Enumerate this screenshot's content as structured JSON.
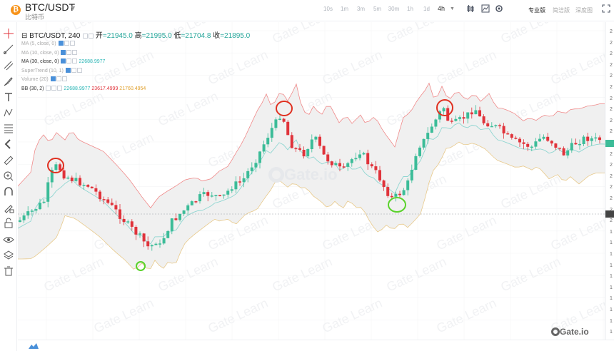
{
  "header": {
    "coin_icon": "bitcoin-icon",
    "pair": "BTC/USDT",
    "pair_sub": "比特币",
    "intervals": [
      "10s",
      "1m",
      "3m",
      "5m",
      "30m",
      "1h",
      "1d"
    ],
    "active_interval": "4h",
    "icons": [
      "candle-type-icon",
      "indicator-icon",
      "settings-icon"
    ],
    "views": [
      "专业版",
      "简洁版",
      "深度图"
    ],
    "fullscreen_icon": "fullscreen-icon"
  },
  "legend": {
    "symbol": "BTC/USDT, 240",
    "open_label": "开",
    "open": "=21945.0",
    "high_label": "高",
    "high": "=21995.0",
    "low_label": "低",
    "low": "=21704.8",
    "close_label": "收",
    "close": "=21895.0",
    "indicators": [
      {
        "name": "MA (5, close, 0)",
        "values": []
      },
      {
        "name": "MA (10, close, 0)",
        "values": []
      },
      {
        "name": "MA (30, close, 0)",
        "values": [
          "22688.9977"
        ]
      },
      {
        "name": "SuperTrend (10, 1)",
        "values": []
      },
      {
        "name": "Volume (20)",
        "values": []
      },
      {
        "name": "BB (30, 2)",
        "values": [
          "22688.9977",
          "23617.4999",
          "21760.4954"
        ]
      }
    ]
  },
  "toolbar": [
    "crosshair-icon",
    "trend-line-icon",
    "multi-line-icon",
    "brush-icon",
    "text-icon",
    "pattern-icon",
    "fib-icon",
    "back-arrow-icon",
    "ruler-icon",
    "zoom-in-icon",
    "magnet-icon",
    "lock-drawing-icon",
    "lock-icon",
    "eye-icon",
    "layers-icon",
    "trash-icon"
  ],
  "price_axis_digits": [
    "2",
    "2",
    "2",
    "2",
    "2",
    "2",
    "2",
    "2",
    "2",
    "2",
    "2",
    "2",
    "2",
    "2",
    "2",
    "2",
    "2",
    "2",
    "1",
    "1",
    "1",
    "1",
    "1",
    "1",
    "1",
    "1",
    "1",
    "1"
  ],
  "watermark": "Gate.io",
  "watermark_small": "Gate Learn",
  "brand": "Gate.io",
  "colors": {
    "up": "#3cbc98",
    "down": "#e0333b",
    "bb_band": "#f0f0f0",
    "ma": "#8fd6d1",
    "upper": "#f08a8a",
    "lower": "#e8c98a",
    "highlight_red": "#e03020",
    "highlight_green": "#59d22a"
  }
}
